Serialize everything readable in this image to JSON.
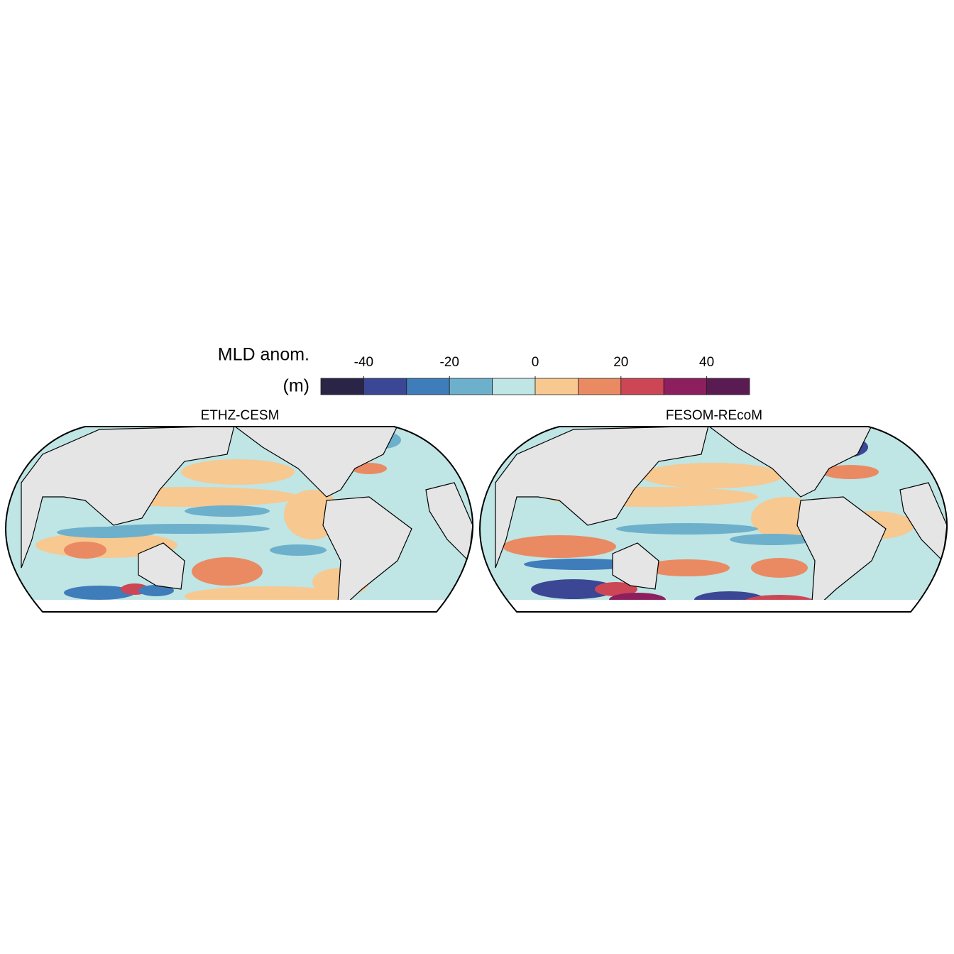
{
  "colorbar": {
    "title_lines": [
      "MLD anom.",
      "(m)"
    ],
    "bounds": [
      -50,
      -40,
      -30,
      -20,
      -10,
      0,
      10,
      20,
      30,
      40,
      50
    ],
    "colors": [
      "#2a2547",
      "#3b4794",
      "#3f7cba",
      "#6db0cc",
      "#bfe5e5",
      "#f7c890",
      "#ea8a63",
      "#cc4655",
      "#8e1f5f",
      "#5a1b52"
    ],
    "ticks": [
      -40,
      -20,
      0,
      20,
      40
    ]
  },
  "panels": [
    {
      "title": "ETHZ-CESM"
    },
    {
      "title": "FESOM-REcoM"
    }
  ]
}
